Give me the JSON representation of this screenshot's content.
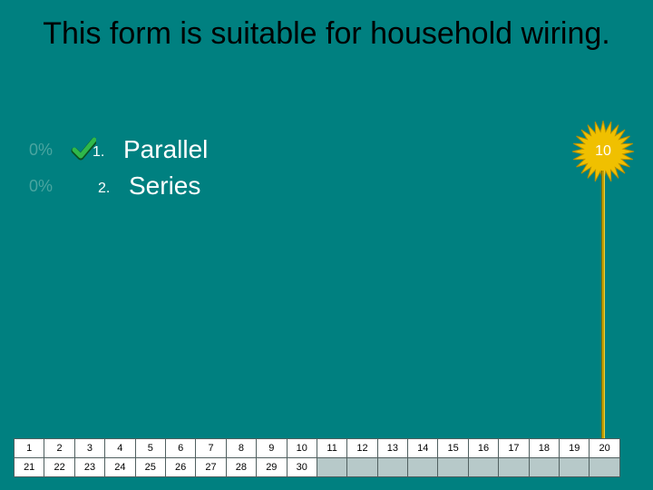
{
  "title": "This form is suitable for household wiring.",
  "answers": [
    {
      "pct": "0%",
      "num": "1.",
      "text": "Parallel",
      "correct": true
    },
    {
      "pct": "0%",
      "num": "2.",
      "text": "Series",
      "correct": false
    }
  ],
  "countdown": {
    "value": "10",
    "burst_color": "#f0c000",
    "burst_stroke": "#b89000"
  },
  "grid": {
    "cols": 20,
    "rows": 2,
    "filled_count": 30,
    "cell_bg_filled": "#ffffff",
    "cell_bg_empty": "#b7c9c9",
    "cell_border": "#506060",
    "font_size": 11
  },
  "colors": {
    "background": "#008080",
    "title_text": "#000000",
    "answer_text": "#ffffff",
    "pct_text": "#4aa5a0",
    "check_green": "#2fb84a",
    "check_shadow": "#0a5020",
    "stick": "#c0a000"
  }
}
